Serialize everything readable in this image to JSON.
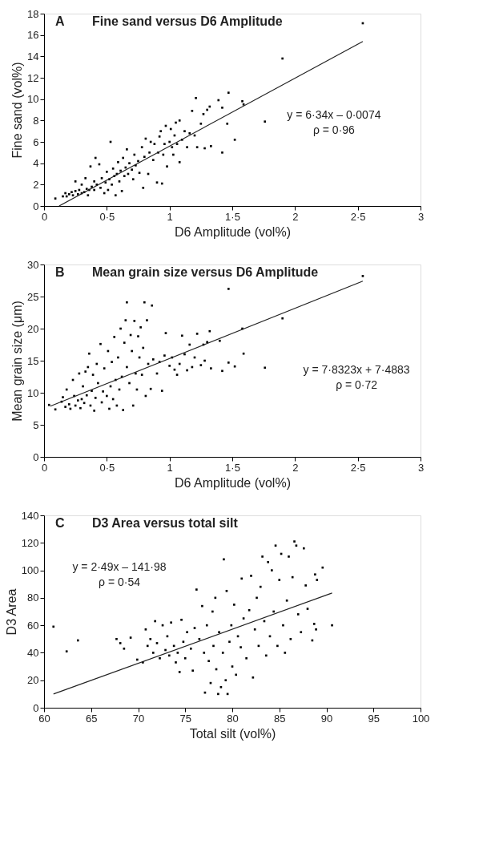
{
  "chart_data": [
    {
      "type": "scatter",
      "title": "Fine sand versus D6 Amplitude",
      "xlabel": "D6 Amplitude (vol%)",
      "ylabel": "Fine sand (vol%)",
      "annotations": [
        "A",
        "y = 6·34x – 0·0074",
        "ρ = 0·96"
      ],
      "grid": false,
      "marker": "square",
      "xlim": [
        0,
        3
      ],
      "ylim": [
        0,
        18
      ],
      "xticks": [
        0,
        {
          "value": 0.5,
          "label": "0·5"
        },
        1,
        {
          "value": 1.5,
          "label": "1·5"
        },
        2,
        {
          "value": 2.5,
          "label": "2·5"
        },
        3
      ],
      "yticks": [
        0,
        2,
        4,
        6,
        8,
        10,
        12,
        14,
        16,
        18
      ],
      "series": [
        {
          "color": "#000000",
          "x": [
            0.09,
            0.15,
            0.17,
            0.18,
            0.2,
            0.22,
            0.23,
            0.25,
            0.25,
            0.27,
            0.28,
            0.3,
            0.3,
            0.32,
            0.33,
            0.34,
            0.35,
            0.36,
            0.37,
            0.38,
            0.4,
            0.4,
            0.41,
            0.42,
            0.44,
            0.45,
            0.46,
            0.48,
            0.49,
            0.5,
            0.51,
            0.52,
            0.53,
            0.54,
            0.55,
            0.56,
            0.57,
            0.58,
            0.59,
            0.6,
            0.61,
            0.62,
            0.63,
            0.64,
            0.65,
            0.66,
            0.67,
            0.68,
            0.7,
            0.71,
            0.72,
            0.73,
            0.75,
            0.76,
            0.78,
            0.79,
            0.8,
            0.81,
            0.83,
            0.84,
            0.85,
            0.87,
            0.88,
            0.9,
            0.91,
            0.92,
            0.93,
            0.94,
            0.95,
            0.96,
            0.97,
            0.98,
            1.0,
            1.01,
            1.02,
            1.03,
            1.04,
            1.05,
            1.06,
            1.08,
            1.08,
            1.1,
            1.12,
            1.14,
            1.16,
            1.18,
            1.2,
            1.21,
            1.22,
            1.25,
            1.27,
            1.28,
            1.3,
            1.32,
            1.33,
            1.39,
            1.42,
            1.42,
            1.46,
            1.47,
            1.52,
            1.58,
            1.59,
            1.76,
            1.9,
            2.54
          ],
          "values": [
            0.7,
            0.9,
            1.2,
            0.9,
            1.1,
            1.3,
            1.0,
            1.4,
            2.3,
            1.1,
            1.5,
            1.2,
            2.0,
            1.3,
            2.6,
            1.6,
            1.0,
            1.5,
            3.7,
            1.8,
            1.5,
            2.3,
            4.5,
            2.0,
            3.9,
            1.7,
            2.6,
            1.2,
            2.2,
            3.2,
            1.5,
            2.5,
            6.0,
            2.0,
            3.5,
            2.8,
            1.0,
            3.0,
            4.1,
            2.3,
            3.3,
            1.4,
            4.5,
            2.8,
            3.6,
            5.3,
            3.0,
            4.0,
            3.4,
            2.5,
            4.8,
            3.8,
            4.2,
            3.1,
            5.5,
            1.7,
            4.6,
            6.3,
            3.0,
            5.0,
            6.0,
            4.3,
            5.8,
            2.2,
            5.0,
            6.5,
            7.0,
            2.1,
            4.8,
            5.8,
            7.5,
            3.7,
            6.0,
            7.2,
            5.5,
            4.8,
            6.6,
            7.8,
            5.8,
            4.1,
            8.0,
            6.2,
            7.0,
            5.5,
            6.8,
            8.9,
            6.6,
            10.1,
            5.5,
            7.7,
            8.6,
            5.4,
            9.0,
            9.3,
            5.6,
            9.9,
            9.2,
            5.0,
            7.7,
            10.6,
            6.2,
            9.8,
            9.5,
            7.9,
            13.8,
            17.1
          ]
        },
        {
          "type": "line",
          "marker": "none",
          "color": "#222222",
          "x": [
            0.12,
            2.54
          ],
          "values": [
            0,
            15.4
          ]
        }
      ]
    },
    {
      "type": "scatter",
      "title": "Mean grain size versus D6 Amplitude",
      "xlabel": "D6 Amplitude (vol%)",
      "ylabel": "Mean grain size (μm)",
      "annotations": [
        "B",
        "y = 7·8323x + 7·4883",
        "ρ = 0·72"
      ],
      "grid": false,
      "marker": "square",
      "xlim": [
        0,
        3
      ],
      "ylim": [
        0,
        30
      ],
      "xticks": [
        0,
        {
          "value": 0.5,
          "label": "0·5"
        },
        1,
        {
          "value": 1.5,
          "label": "1·5"
        },
        2,
        {
          "value": 2.5,
          "label": "2·5"
        },
        3
      ],
      "yticks": [
        0,
        5,
        10,
        15,
        20,
        25,
        30
      ],
      "series": [
        {
          "color": "#000000",
          "x": [
            0.04,
            0.09,
            0.14,
            0.15,
            0.17,
            0.18,
            0.2,
            0.21,
            0.23,
            0.24,
            0.25,
            0.27,
            0.28,
            0.29,
            0.3,
            0.31,
            0.32,
            0.33,
            0.34,
            0.35,
            0.36,
            0.37,
            0.38,
            0.39,
            0.4,
            0.41,
            0.42,
            0.43,
            0.45,
            0.46,
            0.47,
            0.48,
            0.5,
            0.51,
            0.52,
            0.53,
            0.54,
            0.55,
            0.56,
            0.57,
            0.58,
            0.59,
            0.6,
            0.61,
            0.62,
            0.63,
            0.64,
            0.65,
            0.66,
            0.66,
            0.68,
            0.69,
            0.7,
            0.71,
            0.72,
            0.73,
            0.74,
            0.75,
            0.76,
            0.77,
            0.78,
            0.79,
            0.8,
            0.81,
            0.82,
            0.83,
            0.85,
            0.86,
            0.87,
            0.9,
            0.92,
            0.94,
            0.96,
            0.97,
            1.0,
            1.02,
            1.04,
            1.06,
            1.08,
            1.1,
            1.12,
            1.14,
            1.16,
            1.18,
            1.2,
            1.22,
            1.25,
            1.27,
            1.28,
            1.3,
            1.32,
            1.33,
            1.4,
            1.42,
            1.47,
            1.47,
            1.52,
            1.58,
            1.59,
            1.76,
            1.9,
            2.54
          ],
          "values": [
            8.1,
            7.4,
            8.6,
            9.3,
            7.8,
            10.5,
            8.2,
            7.5,
            12.0,
            9.5,
            8.0,
            8.8,
            13.0,
            7.6,
            9.0,
            11.0,
            8.4,
            13.3,
            9.6,
            14.0,
            16.1,
            8.0,
            10.3,
            12.8,
            7.2,
            9.2,
            14.5,
            11.5,
            17.6,
            8.5,
            10.2,
            13.8,
            9.5,
            16.5,
            7.5,
            11.0,
            14.8,
            9.0,
            18.7,
            12.0,
            8.0,
            15.5,
            10.5,
            20.0,
            12.5,
            7.3,
            17.8,
            21.3,
            14.0,
            24.1,
            11.5,
            19.0,
            16.5,
            8.0,
            21.2,
            13.0,
            10.5,
            18.8,
            15.5,
            20.2,
            12.8,
            17.0,
            24.1,
            9.5,
            21.3,
            14.5,
            10.6,
            23.6,
            15.2,
            13.0,
            14.8,
            10.3,
            15.8,
            19.3,
            14.2,
            15.5,
            13.6,
            12.8,
            14.5,
            18.9,
            16.0,
            13.5,
            17.5,
            14.0,
            15.5,
            19.2,
            14.3,
            17.5,
            15.0,
            17.9,
            19.6,
            13.8,
            18.1,
            13.4,
            26.2,
            14.7,
            14.1,
            20.0,
            16.1,
            13.9,
            21.6,
            28.2
          ]
        },
        {
          "type": "line",
          "marker": "none",
          "color": "#222222",
          "x": [
            0.05,
            2.54
          ],
          "values": [
            7.9,
            27.4
          ]
        }
      ]
    },
    {
      "type": "scatter",
      "title": "D3 Area versus total silt",
      "xlabel": "Total silt (vol%)",
      "ylabel": "D3 Area",
      "annotations": [
        "C",
        "y = 2·49x – 141·98",
        "ρ = 0·54"
      ],
      "grid": false,
      "marker": "square",
      "xlim": [
        60,
        100
      ],
      "ylim": [
        0,
        140
      ],
      "xticks": [
        60,
        65,
        70,
        75,
        80,
        85,
        90,
        95,
        100
      ],
      "yticks": [
        0,
        20,
        40,
        60,
        80,
        100,
        120,
        140
      ],
      "series": [
        {
          "color": "#000000",
          "x": [
            61,
            62.4,
            63.6,
            67.7,
            68.1,
            68.5,
            69.2,
            69.9,
            70.5,
            70.8,
            71,
            71.3,
            71.6,
            71.8,
            72,
            72.3,
            72.6,
            72.9,
            73.1,
            73.3,
            73.5,
            73.8,
            74,
            74.2,
            74.4,
            74.6,
            74.8,
            75,
            75.2,
            75.6,
            75.8,
            76,
            76.2,
            76.5,
            76.8,
            77,
            77.1,
            77.3,
            77.5,
            77.7,
            77.9,
            78,
            78.2,
            78.3,
            78.5,
            78.6,
            78.8,
            79,
            79.1,
            79.3,
            79.4,
            79.5,
            79.7,
            79.9,
            80,
            80.2,
            80.4,
            80.6,
            80.9,
            81,
            81.2,
            81.5,
            81.8,
            82,
            82.2,
            82.4,
            82.6,
            82.8,
            83,
            83.2,
            83.4,
            83.6,
            83.8,
            84,
            84.2,
            84.4,
            84.6,
            84.8,
            85,
            85.2,
            85.4,
            85.6,
            85.8,
            86,
            86.2,
            86.4,
            86.6,
            86.8,
            87,
            87.3,
            87.6,
            87.8,
            88,
            88.5,
            88.7,
            88.8,
            88.9,
            89,
            89.6,
            90.6
          ],
          "values": [
            59,
            41,
            49,
            50,
            47,
            43,
            51,
            35,
            33,
            57,
            45,
            50,
            40,
            63,
            47,
            36,
            60,
            42,
            52,
            38,
            62,
            45,
            33,
            40,
            26,
            64,
            48,
            36,
            55,
            43,
            27,
            58,
            86,
            50,
            74,
            40,
            11,
            60,
            34,
            18,
            70,
            45,
            80,
            28,
            10,
            55,
            15,
            40,
            108,
            20,
            85,
            10,
            48,
            60,
            30,
            75,
            24,
            52,
            44,
            94,
            65,
            36,
            71,
            96,
            22,
            57,
            80,
            45,
            88,
            110,
            63,
            38,
            106,
            52,
            100,
            70,
            118,
            45,
            93,
            112,
            60,
            40,
            78,
            110,
            50,
            95,
            121,
            118,
            68,
            55,
            116,
            89,
            72,
            49,
            61,
            97,
            57,
            93,
            102,
            60
          ]
        },
        {
          "type": "line",
          "marker": "none",
          "color": "#222222",
          "x": [
            61,
            90.6
          ],
          "values": [
            10,
            83.5
          ]
        }
      ]
    }
  ]
}
